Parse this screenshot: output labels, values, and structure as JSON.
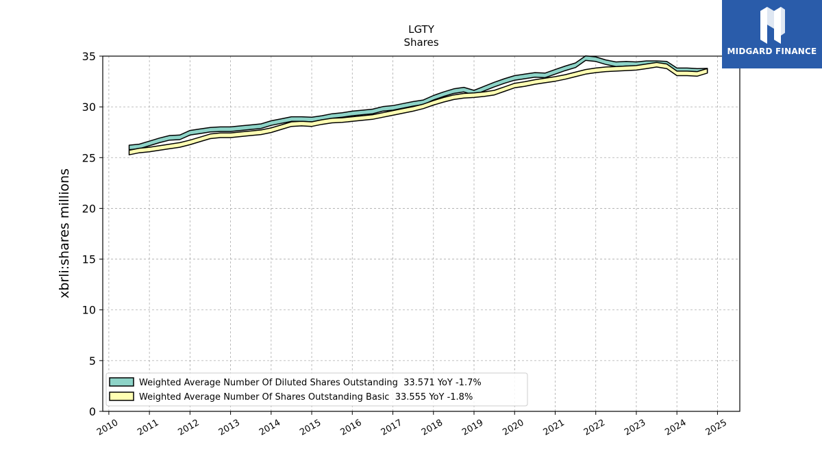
{
  "brand": {
    "name": "MIDGARD FINANCE",
    "color": "#2a5caa"
  },
  "chart_data": {
    "type": "area",
    "title": "LGTY",
    "subtitle": "Shares",
    "ylabel": "xbrli:shares millions",
    "xlabel": "",
    "xlim": [
      2009.85,
      2025.55
    ],
    "ylim": [
      0,
      35
    ],
    "x_ticks": [
      "2010",
      "2011",
      "2012",
      "2013",
      "2014",
      "2015",
      "2016",
      "2017",
      "2018",
      "2019",
      "2020",
      "2021",
      "2022",
      "2023",
      "2024",
      "2025"
    ],
    "y_ticks": [
      "0",
      "5",
      "10",
      "15",
      "20",
      "25",
      "30",
      "35"
    ],
    "grid": true,
    "legend_position": "lower-left",
    "band_width": 0.45,
    "series": [
      {
        "name": "Weighted Average Number Of Diluted Shares Outstanding  33.571 YoY -1.7%",
        "color": "#8dd3c7",
        "x": [
          2010.5,
          2010.75,
          2011.0,
          2011.25,
          2011.5,
          2011.75,
          2012.0,
          2012.25,
          2012.5,
          2012.75,
          2013.0,
          2013.25,
          2013.5,
          2013.75,
          2014.0,
          2014.25,
          2014.5,
          2014.75,
          2015.0,
          2015.25,
          2015.5,
          2015.75,
          2016.0,
          2016.25,
          2016.5,
          2016.75,
          2017.0,
          2017.25,
          2017.5,
          2017.75,
          2018.0,
          2018.25,
          2018.5,
          2018.75,
          2019.0,
          2019.25,
          2019.5,
          2019.75,
          2020.0,
          2020.25,
          2020.5,
          2020.75,
          2021.0,
          2021.25,
          2021.5,
          2021.75,
          2022.0,
          2022.25,
          2022.5,
          2022.75,
          2023.0,
          2023.25,
          2023.5,
          2023.75,
          2024.0,
          2024.25,
          2024.5,
          2024.75
        ],
        "values": [
          26.0,
          26.1,
          26.4,
          26.7,
          26.95,
          27.0,
          27.45,
          27.6,
          27.75,
          27.8,
          27.8,
          27.9,
          28.0,
          28.1,
          28.4,
          28.6,
          28.8,
          28.8,
          28.75,
          28.9,
          29.1,
          29.2,
          29.35,
          29.45,
          29.55,
          29.8,
          29.9,
          30.1,
          30.3,
          30.45,
          30.9,
          31.25,
          31.55,
          31.7,
          31.4,
          31.8,
          32.2,
          32.55,
          32.85,
          33.0,
          33.15,
          33.1,
          33.45,
          33.8,
          34.1,
          34.8,
          34.7,
          34.4,
          34.2,
          34.25,
          34.2,
          34.3,
          34.3,
          34.25,
          33.6,
          33.6,
          33.55,
          33.571
        ]
      },
      {
        "name": "Weighted Average Number Of Shares Outstanding Basic  33.555 YoY -1.8%",
        "color": "#ffffb3",
        "x": [
          2010.5,
          2010.75,
          2011.0,
          2011.25,
          2011.5,
          2011.75,
          2012.0,
          2012.25,
          2012.5,
          2012.75,
          2013.0,
          2013.25,
          2013.5,
          2013.75,
          2014.0,
          2014.25,
          2014.5,
          2014.75,
          2015.0,
          2015.25,
          2015.5,
          2015.75,
          2016.0,
          2016.25,
          2016.5,
          2016.75,
          2017.0,
          2017.25,
          2017.5,
          2017.75,
          2018.0,
          2018.25,
          2018.5,
          2018.75,
          2019.0,
          2019.25,
          2019.5,
          2019.75,
          2020.0,
          2020.25,
          2020.5,
          2020.75,
          2021.0,
          2021.25,
          2021.5,
          2021.75,
          2022.0,
          2022.25,
          2022.5,
          2022.75,
          2023.0,
          2023.25,
          2023.5,
          2023.75,
          2024.0,
          2024.25,
          2024.5,
          2024.75
        ],
        "values": [
          25.5,
          25.7,
          25.8,
          25.95,
          26.1,
          26.25,
          26.5,
          26.8,
          27.1,
          27.2,
          27.2,
          27.3,
          27.4,
          27.5,
          27.7,
          28.0,
          28.3,
          28.35,
          28.3,
          28.5,
          28.65,
          28.7,
          28.8,
          28.9,
          29.0,
          29.2,
          29.4,
          29.6,
          29.8,
          30.05,
          30.4,
          30.7,
          30.95,
          31.1,
          31.15,
          31.25,
          31.4,
          31.75,
          32.1,
          32.25,
          32.45,
          32.6,
          32.75,
          32.95,
          33.2,
          33.45,
          33.6,
          33.7,
          33.75,
          33.8,
          33.85,
          34.0,
          34.15,
          34.0,
          33.3,
          33.3,
          33.25,
          33.555
        ]
      }
    ]
  }
}
